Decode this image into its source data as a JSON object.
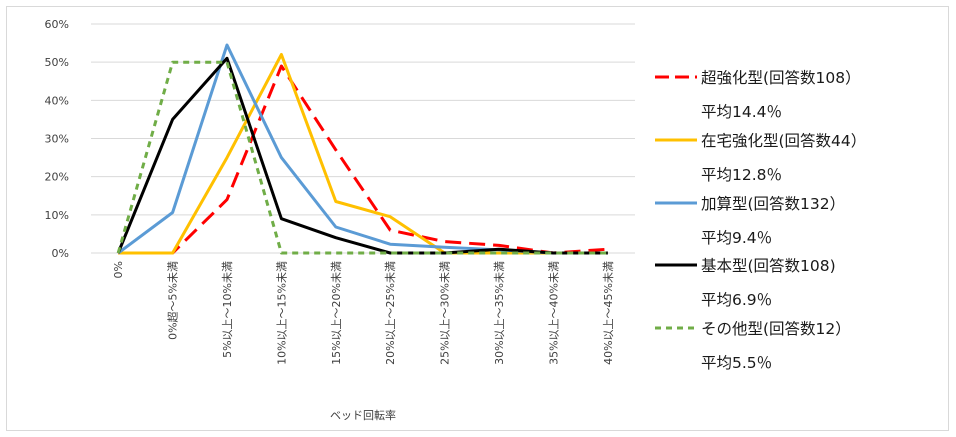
{
  "chart_data": {
    "type": "line",
    "xlabel": "ベッド回転率",
    "ylabel": "",
    "ylim": [
      0,
      60
    ],
    "y_ticks": [
      "0%",
      "10%",
      "20%",
      "30%",
      "40%",
      "50%",
      "60%"
    ],
    "grid": true,
    "legend_position": "right",
    "categories": [
      "0%",
      "0%超～5%未満",
      "5%以上～10%未満",
      "10%以上～15%未満",
      "15%以上～20%未満",
      "20%以上～25%未満",
      "25%以上～30%未満",
      "30%以上～35%未満",
      "35%以上～40%未満",
      "40%以上～45%未満"
    ],
    "series": [
      {
        "name": "超強化型(回答数108）",
        "avg": "平均14.4％",
        "color": "#ff0000",
        "dash": "16,8",
        "values": [
          0,
          0,
          14,
          49,
          27,
          6,
          3,
          2,
          0,
          1
        ]
      },
      {
        "name": "在宅強化型(回答数44）",
        "avg": "平均12.8％",
        "color": "#ffc000",
        "dash": "",
        "values": [
          0,
          0,
          25,
          52,
          13.5,
          9.5,
          0,
          0,
          0,
          0
        ]
      },
      {
        "name": "加算型(回答数132）",
        "avg": "平均9.4％",
        "color": "#5b9bd5",
        "dash": "",
        "values": [
          0,
          10.6,
          54.5,
          25,
          6.8,
          2.3,
          1.5,
          0.8,
          0,
          0
        ]
      },
      {
        "name": "基本型(回答数108)",
        "avg": "平均6.9％",
        "color": "#000000",
        "dash": "",
        "values": [
          0,
          35,
          51,
          9,
          4,
          0,
          0,
          1,
          0,
          0
        ]
      },
      {
        "name": "その他型(回答数12）",
        "avg": "平均5.5％",
        "color": "#70ad47",
        "dash": "6,5",
        "values": [
          0,
          50,
          50,
          0,
          0,
          0,
          0,
          0,
          0,
          0
        ]
      }
    ]
  }
}
